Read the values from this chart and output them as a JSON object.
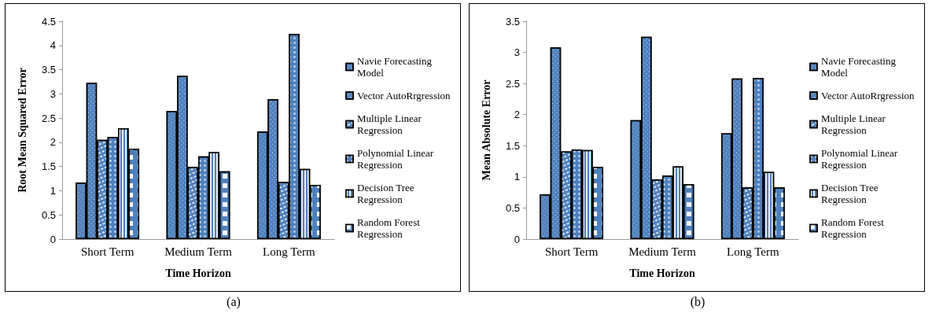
{
  "chart_data": [
    {
      "type": "bar",
      "xlabel": "Time Horizon",
      "ylabel": "Root Mean Squared Error",
      "categories": [
        "Short Term",
        "Medium Term",
        "Long Term"
      ],
      "series": [
        {
          "name": "Navie Forecasting Model",
          "color": "#4f81bd",
          "values": [
            1.17,
            2.65,
            2.22
          ]
        },
        {
          "name": "Vector AutoRrgression",
          "color": "#4f81bd",
          "values": [
            3.23,
            3.37,
            2.89
          ]
        },
        {
          "name": "Multiple Linear Regression",
          "color": "#4f81bd",
          "values": [
            2.05,
            1.49,
            1.18
          ]
        },
        {
          "name": "Polynomial Linear Regression",
          "color": "#4f81bd",
          "values": [
            2.11,
            1.71,
            4.24
          ]
        },
        {
          "name": "Decision Tree Regression",
          "color": "#4f81bd",
          "values": [
            2.29,
            1.8,
            1.45
          ]
        },
        {
          "name": "Random Forest Regression",
          "color": "#4f81bd",
          "values": [
            1.87,
            1.4,
            1.12
          ]
        }
      ],
      "ylim": [
        0,
        4.5
      ],
      "yticks": [
        0,
        0.5,
        1,
        1.5,
        2,
        2.5,
        3,
        3.5,
        4,
        4.5
      ],
      "grid": false,
      "legend": "right",
      "annotations": [
        "(a)"
      ]
    },
    {
      "type": "bar",
      "xlabel": "Time Horizon",
      "ylabel": "Mean Absolute Error",
      "categories": [
        "Short Term",
        "Medium Term",
        "Long Term"
      ],
      "series": [
        {
          "name": "Navie Forecasting Model",
          "color": "#4f81bd",
          "values": [
            0.72,
            1.91,
            1.7
          ]
        },
        {
          "name": "Vector AutoRrgression",
          "color": "#4f81bd",
          "values": [
            3.08,
            3.25,
            2.58
          ]
        },
        {
          "name": "Multiple Linear Regression",
          "color": "#4f81bd",
          "values": [
            1.41,
            0.96,
            0.83
          ]
        },
        {
          "name": "Polynomial Linear Regression",
          "color": "#4f81bd",
          "values": [
            1.44,
            1.02,
            2.59
          ]
        },
        {
          "name": "Decision Tree Regression",
          "color": "#4f81bd",
          "values": [
            1.43,
            1.17,
            1.08
          ]
        },
        {
          "name": "Random Forest Regression",
          "color": "#4f81bd",
          "values": [
            1.16,
            0.88,
            0.83
          ]
        }
      ],
      "ylim": [
        0,
        3.5
      ],
      "yticks": [
        0,
        0.5,
        1,
        1.5,
        2,
        2.5,
        3,
        3.5
      ],
      "grid": false,
      "legend": "right",
      "annotations": [
        "(b)"
      ]
    }
  ]
}
